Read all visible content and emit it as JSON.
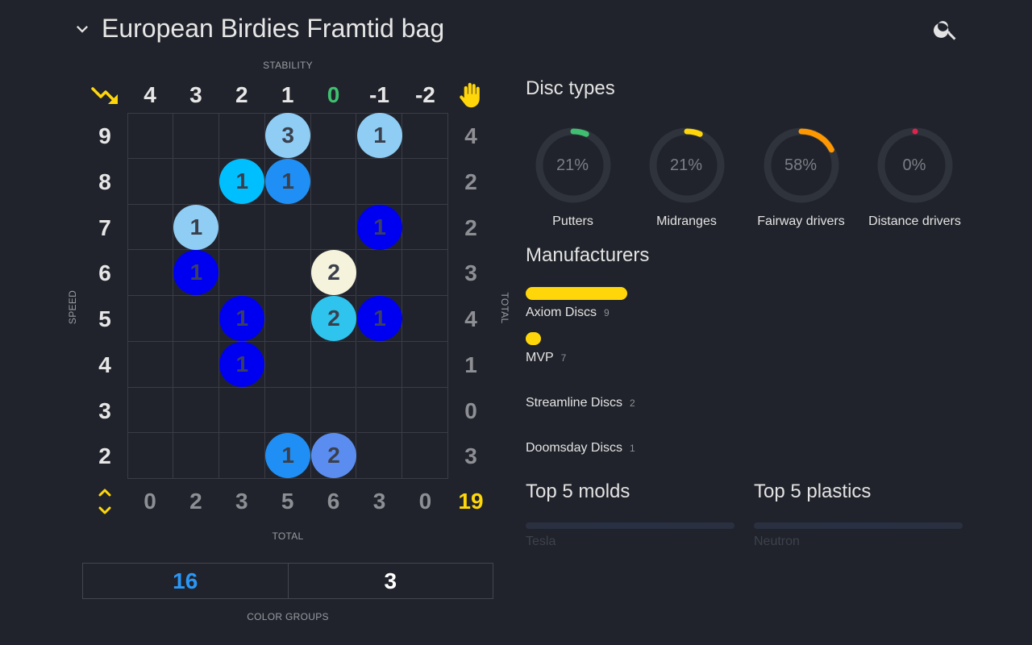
{
  "header": {
    "title": "European Birdies Framtid bag",
    "collapse_icon": "chevron-down-icon",
    "search_icon": "search-icon"
  },
  "axes": {
    "top": "STABILITY",
    "left": "SPEED",
    "right": "TOTAL",
    "bottom": "TOTAL"
  },
  "stability_columns": [
    "4",
    "3",
    "2",
    "1",
    "0",
    "-1",
    "-2"
  ],
  "stability_highlight": "0",
  "stability_highlight_color": "#3fbf6f",
  "speed_rows": [
    "9",
    "8",
    "7",
    "6",
    "5",
    "4",
    "3",
    "2"
  ],
  "row_totals": [
    "4",
    "2",
    "2",
    "3",
    "4",
    "1",
    "0",
    "3"
  ],
  "column_totals": [
    "0",
    "2",
    "3",
    "5",
    "6",
    "3",
    "0"
  ],
  "grand_total": "19",
  "grand_total_color": "#ffd60a",
  "icons": {
    "top_left": "trending-down-icon",
    "top_right": "hand-icon",
    "bottom_left": "expand-collapse-icon"
  },
  "discs": [
    {
      "speed": "9",
      "stability": "1",
      "count": "3",
      "color": "#8fcdf5"
    },
    {
      "speed": "9",
      "stability": "-1",
      "count": "1",
      "color": "#8fcdf5"
    },
    {
      "speed": "8",
      "stability": "2",
      "count": "1",
      "color": "#00bfff"
    },
    {
      "speed": "8",
      "stability": "1",
      "count": "1",
      "color": "#1f8ff5"
    },
    {
      "speed": "7",
      "stability": "3",
      "count": "1",
      "color": "#8fcdf5"
    },
    {
      "speed": "7",
      "stability": "-1",
      "count": "1",
      "color": "#0000f0"
    },
    {
      "speed": "6",
      "stability": "3",
      "count": "1",
      "color": "#0000f0"
    },
    {
      "speed": "6",
      "stability": "0",
      "count": "2",
      "color": "#f5f3dc"
    },
    {
      "speed": "5",
      "stability": "2",
      "count": "1",
      "color": "#0000f0"
    },
    {
      "speed": "5",
      "stability": "0",
      "count": "2",
      "color": "#2ec4ee"
    },
    {
      "speed": "5",
      "stability": "-1",
      "count": "1",
      "color": "#0000f0"
    },
    {
      "speed": "4",
      "stability": "2",
      "count": "1",
      "color": "#0000f0"
    },
    {
      "speed": "2",
      "stability": "1",
      "count": "1",
      "color": "#1f8ff5"
    },
    {
      "speed": "2",
      "stability": "0",
      "count": "2",
      "color": "#5b8df0"
    }
  ],
  "color_groups": {
    "caption": "COLOR GROUPS",
    "values": [
      "16",
      "3"
    ],
    "colors": [
      "#2b97f5",
      "#ffffff"
    ]
  },
  "disc_types": {
    "title": "Disc types",
    "items": [
      {
        "label": "Putters",
        "percent": "21%",
        "fraction": 0.21,
        "color": "#3fbf6f"
      },
      {
        "label": "Midranges",
        "percent": "21%",
        "fraction": 0.21,
        "color": "#ffd60a"
      },
      {
        "label": "Fairway drivers",
        "percent": "58%",
        "fraction": 0.58,
        "color": "#ff9800"
      },
      {
        "label": "Distance drivers",
        "percent": "0%",
        "fraction": 0.0,
        "color": "#e0234d"
      }
    ]
  },
  "manufacturers": {
    "title": "Manufacturers",
    "items": [
      {
        "name": "Axiom Discs",
        "count": "9"
      },
      {
        "name": "MVP",
        "count": "7"
      },
      {
        "name": "Streamline Discs",
        "count": "2"
      },
      {
        "name": "Doomsday Discs",
        "count": "1"
      }
    ]
  },
  "top_molds": {
    "title": "Top 5 molds",
    "first": "Tesla"
  },
  "top_plastics": {
    "title": "Top 5 plastics",
    "first": "Neutron"
  }
}
